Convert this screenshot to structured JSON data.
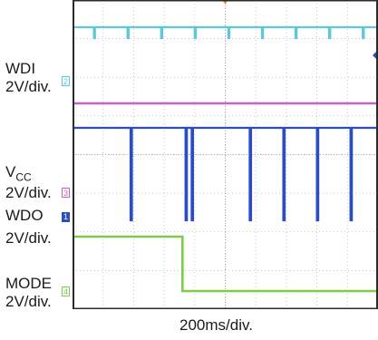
{
  "chart_data": {
    "type": "line",
    "title": "",
    "xlabel": "200ms/div.",
    "grid": true,
    "time_divisions": 10,
    "channels": [
      {
        "name": "WDI",
        "scale": "2V/div.",
        "marker": "2",
        "color": "#5ec8d8",
        "waveform": "high level with short negative pulses",
        "pulse_times_div": [
          0.7,
          1.8,
          2.9,
          4.0,
          5.1,
          6.2,
          7.3,
          8.4,
          9.5
        ]
      },
      {
        "name": "V",
        "name_subscript": "CC",
        "scale": "2V/div.",
        "marker": "3",
        "color": "#c860c8",
        "waveform": "constant high level"
      },
      {
        "name": "WDO",
        "scale": "2V/div.",
        "marker": "1",
        "color": "#2a4dc4",
        "waveform": "high level with long negative pulses",
        "pulse_times_div": [
          1.9,
          3.7,
          3.9,
          5.8,
          6.9,
          8.0,
          9.1
        ]
      },
      {
        "name": "MODE",
        "scale": "2V/div.",
        "marker": "4",
        "color": "#7ccc4c",
        "waveform": "high, stepping low",
        "step_time_div": 3.6
      }
    ]
  }
}
